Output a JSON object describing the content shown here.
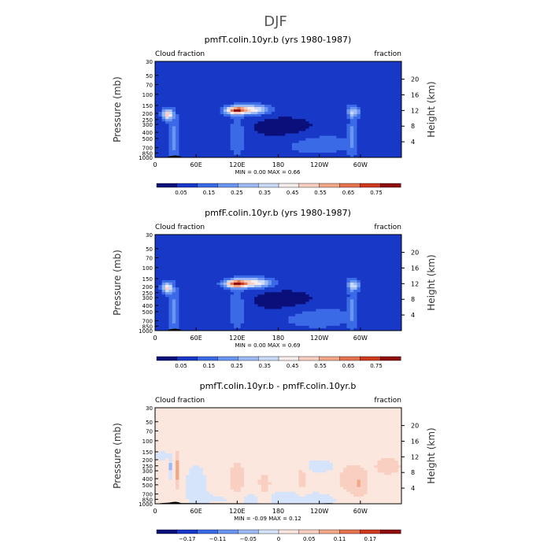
{
  "figure_title": "DJF",
  "colors": {
    "full_scale": [
      "#0a0f7a",
      "#1838c8",
      "#3a6ae6",
      "#6a95f0",
      "#9dbaf4",
      "#c9d9f9",
      "#f7ecec",
      "#f8cfc0",
      "#f2a887",
      "#e6734f",
      "#cf3a1f",
      "#8f0f0f"
    ],
    "diff_scale": [
      "#0a0f7a",
      "#1838c8",
      "#3a6ae6",
      "#6a95f0",
      "#9dbaf4",
      "#d6e4fb",
      "#fbe7dd",
      "#f8cfc0",
      "#f2a887",
      "#e6734f",
      "#cf3a1f",
      "#8f0f0f"
    ],
    "land": "#000000"
  },
  "chart_data": [
    {
      "type": "heatmap",
      "title": "pmfT.colin.10yr.b (yrs 1980-1987)",
      "left_label": "Cloud fraction",
      "right_label": "fraction",
      "ylabel": "Pressure (mb)",
      "ylabel_right": "Height (km)",
      "y_ticks": [
        "30",
        "50",
        "70",
        "100",
        "150",
        "200",
        "250",
        "300",
        "400",
        "500",
        "700",
        "850",
        "1000"
      ],
      "y_ticks_right": [
        "20",
        "16",
        "12",
        "8",
        "4"
      ],
      "x_ticks": [
        "0",
        "60E",
        "120E",
        "180",
        "120W",
        "60W"
      ],
      "xlim": [
        0,
        360
      ],
      "min_max_text": "MIN =    0.00   MAX =    0.66",
      "colorbar_labels": [
        "0.05",
        "0.15",
        "0.25",
        "0.35",
        "0.45",
        "0.55",
        "0.65",
        "0.75"
      ],
      "background_level": 1,
      "features": [
        {
          "lon": 18,
          "p": 210,
          "amp": 6.5,
          "sx": 5,
          "sy": 0.13
        },
        {
          "lon": 118,
          "p": 180,
          "amp": 8.2,
          "sx": 10,
          "sy": 0.1
        },
        {
          "lon": 142,
          "p": 175,
          "amp": 5.0,
          "sx": 16,
          "sy": 0.12
        },
        {
          "lon": 290,
          "p": 190,
          "amp": 3.5,
          "sx": 6,
          "sy": 0.14
        },
        {
          "lon": 28,
          "p": 500,
          "amp": 2.0,
          "sx": 5,
          "sy": 0.6
        },
        {
          "lon": 120,
          "p": 450,
          "amp": 1.6,
          "sx": 8,
          "sy": 0.45
        },
        {
          "lon": 288,
          "p": 450,
          "amp": 1.8,
          "sx": 4,
          "sy": 0.5
        },
        {
          "lon": 190,
          "p": 350,
          "amp": -1.0,
          "sx": 40,
          "sy": 0.35
        },
        {
          "lon": 235,
          "p": 600,
          "amp": 1.1,
          "sx": 40,
          "sy": 0.3
        }
      ],
      "land": [
        {
          "lon": 20,
          "p": 960
        },
        {
          "lon": 26,
          "p": 940
        },
        {
          "lon": 30,
          "p": 930
        },
        {
          "lon": 34,
          "p": 945
        },
        {
          "lon": 38,
          "p": 975
        }
      ]
    },
    {
      "type": "heatmap",
      "title": "pmfF.colin.10yr.b (yrs 1980-1987)",
      "left_label": "Cloud fraction",
      "right_label": "fraction",
      "ylabel": "Pressure (mb)",
      "ylabel_right": "Height (km)",
      "y_ticks": [
        "30",
        "50",
        "70",
        "100",
        "150",
        "200",
        "250",
        "300",
        "400",
        "500",
        "700",
        "850",
        "1000"
      ],
      "y_ticks_right": [
        "20",
        "16",
        "12",
        "8",
        "4"
      ],
      "x_ticks": [
        "0",
        "60E",
        "120E",
        "180",
        "120W",
        "60W"
      ],
      "xlim": [
        0,
        360
      ],
      "min_max_text": "MIN =    0.00   MAX =    0.69",
      "colorbar_labels": [
        "0.05",
        "0.15",
        "0.25",
        "0.35",
        "0.45",
        "0.55",
        "0.65",
        "0.75"
      ],
      "background_level": 1,
      "features": [
        {
          "lon": 18,
          "p": 210,
          "amp": 6.0,
          "sx": 5,
          "sy": 0.13
        },
        {
          "lon": 118,
          "p": 180,
          "amp": 8.6,
          "sx": 11,
          "sy": 0.1
        },
        {
          "lon": 145,
          "p": 175,
          "amp": 5.5,
          "sx": 16,
          "sy": 0.12
        },
        {
          "lon": 290,
          "p": 190,
          "amp": 3.8,
          "sx": 6,
          "sy": 0.14
        },
        {
          "lon": 28,
          "p": 500,
          "amp": 2.0,
          "sx": 5,
          "sy": 0.6
        },
        {
          "lon": 120,
          "p": 450,
          "amp": 1.7,
          "sx": 8,
          "sy": 0.45
        },
        {
          "lon": 288,
          "p": 450,
          "amp": 1.8,
          "sx": 4,
          "sy": 0.5
        },
        {
          "lon": 190,
          "p": 350,
          "amp": -1.0,
          "sx": 40,
          "sy": 0.35
        },
        {
          "lon": 235,
          "p": 600,
          "amp": 1.2,
          "sx": 40,
          "sy": 0.3
        }
      ],
      "land": [
        {
          "lon": 20,
          "p": 960
        },
        {
          "lon": 26,
          "p": 940
        },
        {
          "lon": 30,
          "p": 930
        },
        {
          "lon": 34,
          "p": 945
        },
        {
          "lon": 38,
          "p": 975
        }
      ]
    },
    {
      "type": "heatmap",
      "title": "pmfT.colin.10yr.b - pmfF.colin.10yr.b",
      "left_label": "Cloud fraction",
      "right_label": "fraction",
      "ylabel": "Pressure (mb)",
      "ylabel_right": "Height (km)",
      "y_ticks": [
        "30",
        "50",
        "70",
        "100",
        "150",
        "200",
        "250",
        "300",
        "400",
        "500",
        "700",
        "850",
        "1000"
      ],
      "y_ticks_right": [
        "20",
        "16",
        "12",
        "8",
        "4"
      ],
      "x_ticks": [
        "0",
        "60E",
        "120E",
        "180",
        "120W",
        "60W"
      ],
      "xlim": [
        0,
        360
      ],
      "min_max_text": "MIN =   -0.09   MAX =    0.12",
      "colorbar_labels": [
        "−0.17",
        "−0.11",
        "−0.05",
        "0",
        "0.05",
        "0.11",
        "0.17"
      ],
      "background_level": 6,
      "features": [
        {
          "lon": 32,
          "p": 300,
          "amp": 2.2,
          "sx": 3,
          "sy": 0.45
        },
        {
          "lon": 24,
          "p": 260,
          "amp": -1.8,
          "sx": 3,
          "sy": 0.3
        },
        {
          "lon": 10,
          "p": 170,
          "amp": -1.2,
          "sx": 6,
          "sy": 0.15
        },
        {
          "lon": 120,
          "p": 450,
          "amp": 1.0,
          "sx": 10,
          "sy": 0.6
        },
        {
          "lon": 160,
          "p": 600,
          "amp": 1.0,
          "sx": 8,
          "sy": 0.5
        },
        {
          "lon": 215,
          "p": 400,
          "amp": 1.0,
          "sx": 6,
          "sy": 0.5
        },
        {
          "lon": 60,
          "p": 450,
          "amp": -1.0,
          "sx": 12,
          "sy": 0.5
        },
        {
          "lon": 280,
          "p": 400,
          "amp": 1.0,
          "sx": 10,
          "sy": 0.5
        },
        {
          "lon": 300,
          "p": 500,
          "amp": 1.5,
          "sx": 8,
          "sy": 0.4
        },
        {
          "lon": 180,
          "p": 850,
          "amp": -1.0,
          "sx": 80,
          "sy": 0.25
        },
        {
          "lon": 240,
          "p": 250,
          "amp": -1.0,
          "sx": 20,
          "sy": 0.2
        },
        {
          "lon": 340,
          "p": 250,
          "amp": 1.0,
          "sx": 15,
          "sy": 0.25
        }
      ],
      "land": [
        {
          "lon": 8,
          "p": 980
        },
        {
          "lon": 14,
          "p": 970
        },
        {
          "lon": 20,
          "p": 960
        },
        {
          "lon": 26,
          "p": 940
        },
        {
          "lon": 30,
          "p": 930
        },
        {
          "lon": 34,
          "p": 945
        },
        {
          "lon": 38,
          "p": 975
        },
        {
          "lon": 220,
          "p": 990
        },
        {
          "lon": 255,
          "p": 980
        },
        {
          "lon": 262,
          "p": 985
        }
      ]
    }
  ]
}
